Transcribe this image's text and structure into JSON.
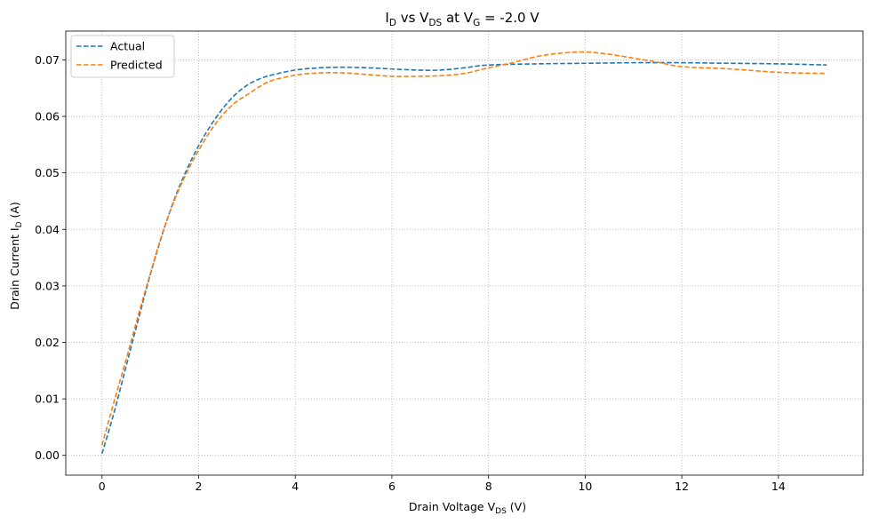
{
  "chart_data": {
    "type": "line",
    "title": {
      "main": "I",
      "sub1": "D",
      "mid1": " vs V",
      "sub2": "DS",
      "mid2": " at V",
      "sub3": "G",
      "tail": " = -2.0 V"
    },
    "xlabel": {
      "main": "Drain Voltage V",
      "sub": "DS",
      "tail": " (V)"
    },
    "ylabel": {
      "main": "Drain Current I",
      "sub": "D",
      "tail": " (A)"
    },
    "xlim": [
      -0.75,
      15.75
    ],
    "ylim": [
      -0.0035,
      0.0751
    ],
    "xticks": [
      0,
      2,
      4,
      6,
      8,
      10,
      12,
      14
    ],
    "yticks": [
      0.0,
      0.01,
      0.02,
      0.03,
      0.04,
      0.05,
      0.06,
      0.07
    ],
    "xtick_labels": [
      "0",
      "2",
      "4",
      "6",
      "8",
      "10",
      "12",
      "14"
    ],
    "ytick_labels": [
      "0.00",
      "0.01",
      "0.02",
      "0.03",
      "0.04",
      "0.05",
      "0.06",
      "0.07"
    ],
    "grid": true,
    "legend_position": "top-left",
    "series": [
      {
        "name": "Actual",
        "color": "#1f77b4",
        "x": [
          0,
          0.25,
          0.5,
          0.75,
          1,
          1.25,
          1.5,
          1.75,
          2,
          2.25,
          2.5,
          2.75,
          3,
          3.25,
          3.5,
          4,
          4.5,
          5,
          5.5,
          6,
          6.5,
          7,
          7.5,
          8,
          9,
          10,
          11,
          12,
          13,
          14,
          15
        ],
        "y": [
          0.0003,
          0.0076,
          0.0158,
          0.024,
          0.032,
          0.0392,
          0.0454,
          0.0505,
          0.0548,
          0.0584,
          0.0614,
          0.0638,
          0.0655,
          0.0666,
          0.0673,
          0.0682,
          0.0686,
          0.0687,
          0.0686,
          0.0684,
          0.0682,
          0.0682,
          0.0686,
          0.0691,
          0.0693,
          0.0694,
          0.0695,
          0.0695,
          0.0694,
          0.0693,
          0.0691
        ]
      },
      {
        "name": "Predicted",
        "color": "#ff7f0e",
        "x": [
          0,
          0.25,
          0.5,
          0.75,
          1,
          1.25,
          1.5,
          1.75,
          2,
          2.25,
          2.5,
          2.75,
          3,
          3.25,
          3.5,
          4,
          4.5,
          5,
          5.5,
          6,
          6.5,
          7,
          7.5,
          8,
          8.5,
          9,
          9.5,
          10,
          10.5,
          11,
          11.5,
          12,
          13,
          14,
          15
        ],
        "y": [
          0.0018,
          0.0095,
          0.017,
          0.0248,
          0.0322,
          0.0393,
          0.0452,
          0.05,
          0.054,
          0.0575,
          0.0603,
          0.0624,
          0.0638,
          0.0652,
          0.0663,
          0.0673,
          0.0677,
          0.0677,
          0.0674,
          0.0671,
          0.0671,
          0.0672,
          0.0676,
          0.0686,
          0.0695,
          0.0706,
          0.0712,
          0.0714,
          0.071,
          0.0703,
          0.0696,
          0.0688,
          0.0684,
          0.0678,
          0.0676
        ]
      }
    ]
  }
}
